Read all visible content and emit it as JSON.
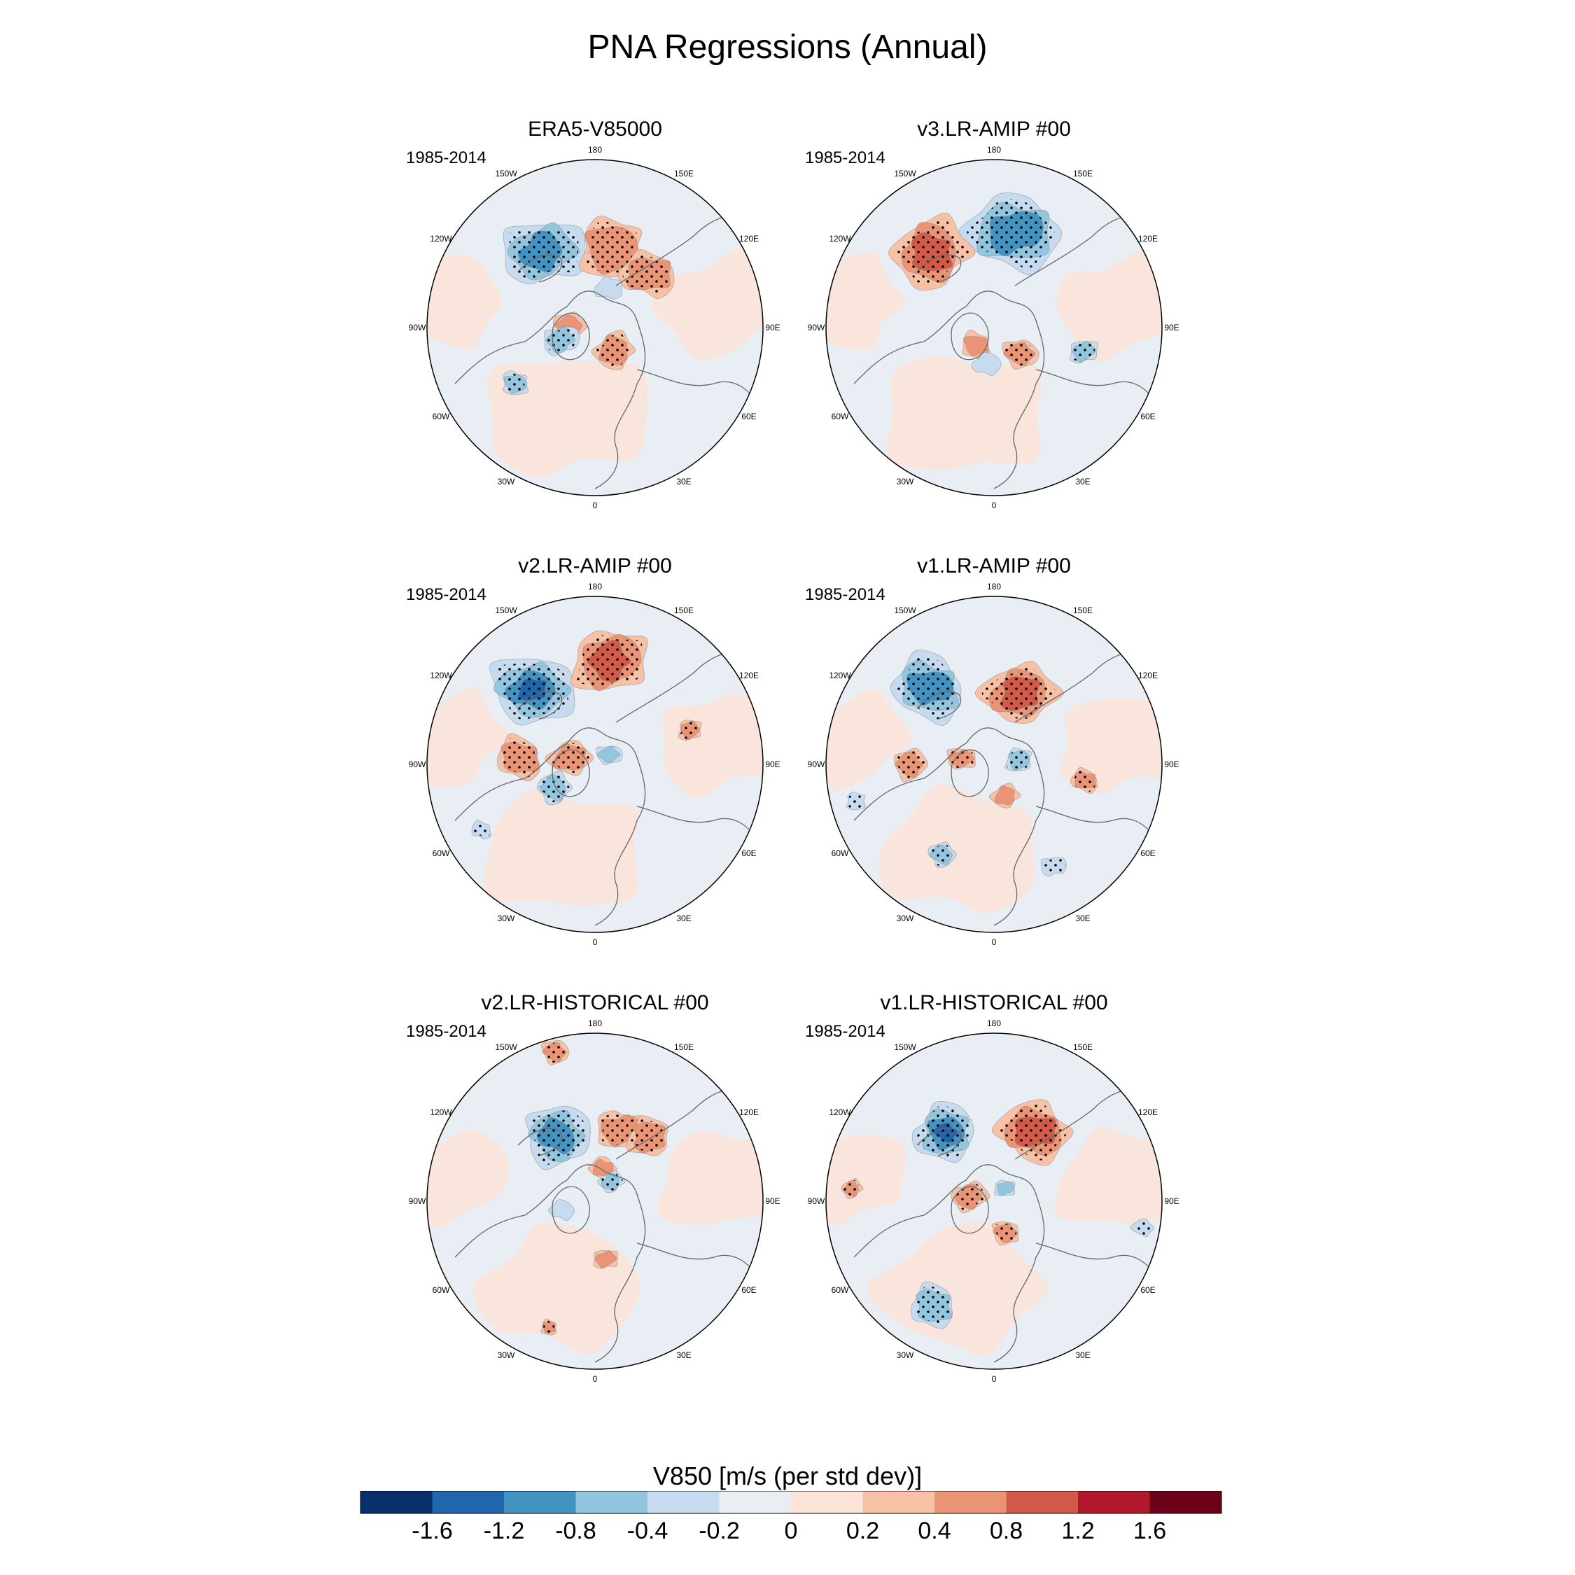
{
  "figure": {
    "title": "PNA Regressions (Annual)",
    "period": "1985-2014",
    "colorbar_label": "V850 [m/s (per std dev)]",
    "colorbar_ticks": [
      "-1.6",
      "-1.2",
      "-0.8",
      "-0.4",
      "-0.2",
      "0",
      "0.2",
      "0.4",
      "0.8",
      "1.2",
      "1.6"
    ],
    "colors": [
      "#08306b",
      "#2166ac",
      "#4393c3",
      "#92c5de",
      "#c6dbef",
      "#e8eef4",
      "#fbe3d8",
      "#f7c1a6",
      "#ea9475",
      "#d35a48",
      "#b2182b",
      "#6b0019"
    ],
    "lon_labels": [
      "180",
      "150E",
      "120E",
      "90E",
      "60E",
      "30E",
      "0",
      "30W",
      "60W",
      "90W",
      "120W",
      "150W"
    ]
  },
  "panels": [
    {
      "title": "ERA5-V85000",
      "features": [
        {
          "lon": -145,
          "r": 0.55,
          "size": 0.23,
          "level": -0.8,
          "stip": true
        },
        {
          "lon": 168,
          "r": 0.48,
          "size": 0.2,
          "level": 0.4,
          "stip": true
        },
        {
          "lon": 135,
          "r": 0.45,
          "size": 0.16,
          "level": 0.4,
          "stip": true
        },
        {
          "lon": 40,
          "r": 0.18,
          "size": 0.12,
          "level": 0.4,
          "stip": true
        },
        {
          "lon": -95,
          "r": 0.15,
          "size": 0.09,
          "level": 0.4,
          "stip": false
        },
        {
          "lon": -70,
          "r": 0.22,
          "size": 0.1,
          "level": -0.4,
          "stip": true
        },
        {
          "lon": -55,
          "r": 0.58,
          "size": 0.08,
          "level": -0.4,
          "stip": true
        },
        {
          "lon": 160,
          "r": 0.25,
          "size": 0.08,
          "level": -0.2,
          "stip": false
        }
      ]
    },
    {
      "title": "v3.LR-AMIP  #00",
      "features": [
        {
          "lon": 168,
          "r": 0.58,
          "size": 0.27,
          "level": -0.8,
          "stip": true
        },
        {
          "lon": -140,
          "r": 0.58,
          "size": 0.23,
          "level": 0.8,
          "stip": true
        },
        {
          "lon": 45,
          "r": 0.22,
          "size": 0.1,
          "level": 0.4,
          "stip": true
        },
        {
          "lon": 75,
          "r": 0.55,
          "size": 0.08,
          "level": -0.4,
          "stip": true
        },
        {
          "lon": -45,
          "r": 0.15,
          "size": 0.09,
          "level": 0.4,
          "stip": false
        },
        {
          "lon": -10,
          "r": 0.22,
          "size": 0.08,
          "level": -0.2,
          "stip": false
        }
      ]
    },
    {
      "title": "v2.LR-AMIP  #00",
      "features": [
        {
          "lon": -140,
          "r": 0.58,
          "size": 0.24,
          "level": -1.2,
          "stip": true
        },
        {
          "lon": 172,
          "r": 0.62,
          "size": 0.22,
          "level": 0.8,
          "stip": true
        },
        {
          "lon": -95,
          "r": 0.45,
          "size": 0.14,
          "level": 0.4,
          "stip": true
        },
        {
          "lon": -105,
          "r": 0.15,
          "size": 0.12,
          "level": 0.4,
          "stip": true
        },
        {
          "lon": -60,
          "r": 0.28,
          "size": 0.1,
          "level": -0.4,
          "stip": true
        },
        {
          "lon": 125,
          "r": 0.1,
          "size": 0.07,
          "level": -0.4,
          "stip": false
        },
        {
          "lon": 110,
          "r": 0.6,
          "size": 0.07,
          "level": 0.4,
          "stip": true
        },
        {
          "lon": -60,
          "r": 0.78,
          "size": 0.06,
          "level": -0.2,
          "stip": true
        }
      ]
    },
    {
      "title": "v1.LR-AMIP  #00",
      "features": [
        {
          "lon": -140,
          "r": 0.6,
          "size": 0.22,
          "level": -0.8,
          "stip": true
        },
        {
          "lon": 160,
          "r": 0.45,
          "size": 0.21,
          "level": 0.8,
          "stip": true
        },
        {
          "lon": -90,
          "r": 0.5,
          "size": 0.1,
          "level": 0.4,
          "stip": true
        },
        {
          "lon": -100,
          "r": 0.2,
          "size": 0.08,
          "level": 0.4,
          "stip": true
        },
        {
          "lon": 100,
          "r": 0.15,
          "size": 0.08,
          "level": -0.4,
          "stip": true
        },
        {
          "lon": 80,
          "r": 0.55,
          "size": 0.08,
          "level": 0.4,
          "stip": true
        },
        {
          "lon": 20,
          "r": 0.2,
          "size": 0.08,
          "level": 0.4,
          "stip": false
        },
        {
          "lon": -30,
          "r": 0.62,
          "size": 0.08,
          "level": -0.4,
          "stip": true
        },
        {
          "lon": 30,
          "r": 0.7,
          "size": 0.07,
          "level": -0.2,
          "stip": true
        },
        {
          "lon": -75,
          "r": 0.85,
          "size": 0.06,
          "level": -0.2,
          "stip": true
        }
      ]
    },
    {
      "title": "v2.LR-HISTORICAL  #00",
      "features": [
        {
          "lon": -150,
          "r": 0.45,
          "size": 0.2,
          "level": -0.8,
          "stip": true
        },
        {
          "lon": 160,
          "r": 0.45,
          "size": 0.14,
          "level": 0.4,
          "stip": true
        },
        {
          "lon": 140,
          "r": 0.5,
          "size": 0.13,
          "level": 0.4,
          "stip": true
        },
        {
          "lon": 165,
          "r": 0.2,
          "size": 0.08,
          "level": 0.4,
          "stip": false
        },
        {
          "lon": 140,
          "r": 0.15,
          "size": 0.07,
          "level": -0.4,
          "stip": true
        },
        {
          "lon": -165,
          "r": 0.92,
          "size": 0.08,
          "level": 0.4,
          "stip": true
        },
        {
          "lon": 10,
          "r": 0.35,
          "size": 0.07,
          "level": 0.4,
          "stip": false
        },
        {
          "lon": -20,
          "r": 0.8,
          "size": 0.05,
          "level": 0.4,
          "stip": true
        },
        {
          "lon": -75,
          "r": 0.2,
          "size": 0.07,
          "level": -0.2,
          "stip": false
        }
      ]
    },
    {
      "title": "v1.LR-HISTORICAL  #00",
      "features": [
        {
          "lon": -145,
          "r": 0.5,
          "size": 0.19,
          "level": -1.2,
          "stip": true
        },
        {
          "lon": 150,
          "r": 0.48,
          "size": 0.21,
          "level": 0.8,
          "stip": true
        },
        {
          "lon": -100,
          "r": 0.15,
          "size": 0.1,
          "level": 0.4,
          "stip": true
        },
        {
          "lon": 20,
          "r": 0.2,
          "size": 0.08,
          "level": 0.4,
          "stip": true
        },
        {
          "lon": 140,
          "r": 0.1,
          "size": 0.06,
          "level": -0.4,
          "stip": false
        },
        {
          "lon": -30,
          "r": 0.72,
          "size": 0.14,
          "level": -0.4,
          "stip": true
        },
        {
          "lon": 80,
          "r": 0.9,
          "size": 0.06,
          "level": -0.2,
          "stip": true
        },
        {
          "lon": -95,
          "r": 0.85,
          "size": 0.06,
          "level": 0.4,
          "stip": true
        }
      ]
    }
  ]
}
